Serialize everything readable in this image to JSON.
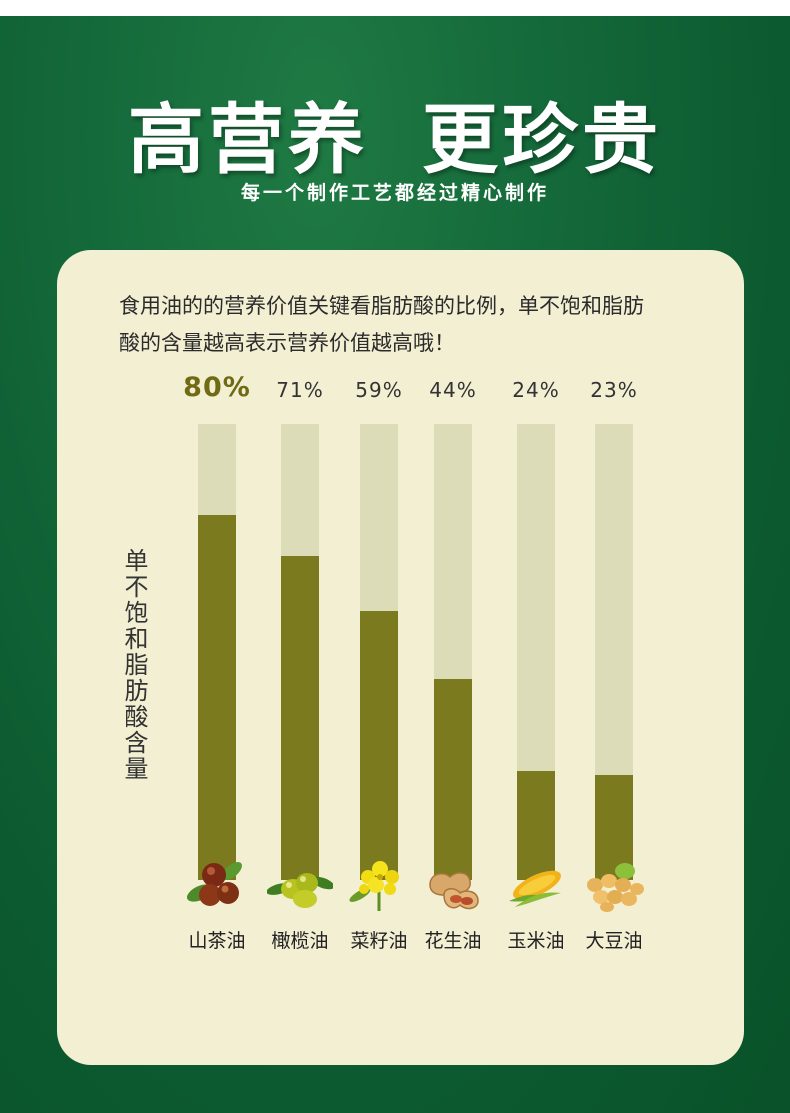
{
  "header": {
    "title_part1": "高营养",
    "title_part2": "更珍贵",
    "subtitle": "每一个制作工艺都经过精心制作"
  },
  "intro": {
    "line1": "食用油的的营养价值关键看脂肪酸的比例，单不饱和脂肪",
    "line2": "酸的含量越高表示营养价值越高哦！"
  },
  "colors": {
    "background": "#0e5b2f",
    "card": "#f3efd3",
    "bar_fill": "#7b7a1e",
    "bar_track": "#dddcb9",
    "highlight_label": "#6f6a13"
  },
  "chart_data": {
    "type": "bar",
    "ylabel": "单不饱和脂肪酸含量",
    "xlabel": "",
    "ylim": [
      0,
      100
    ],
    "categories": [
      "山茶油",
      "橄榄油",
      "菜籽油",
      "花生油",
      "玉米油",
      "大豆油"
    ],
    "values": [
      80,
      71,
      59,
      44,
      24,
      23
    ],
    "value_labels": [
      "80%",
      "71%",
      "59%",
      "44%",
      "24%",
      "23%"
    ],
    "icons": [
      "camellia-fruit-icon",
      "olive-icon",
      "rapeseed-flower-icon",
      "peanut-icon",
      "corn-icon",
      "soybean-icon"
    ],
    "highlight_index": 0,
    "grid": false
  }
}
